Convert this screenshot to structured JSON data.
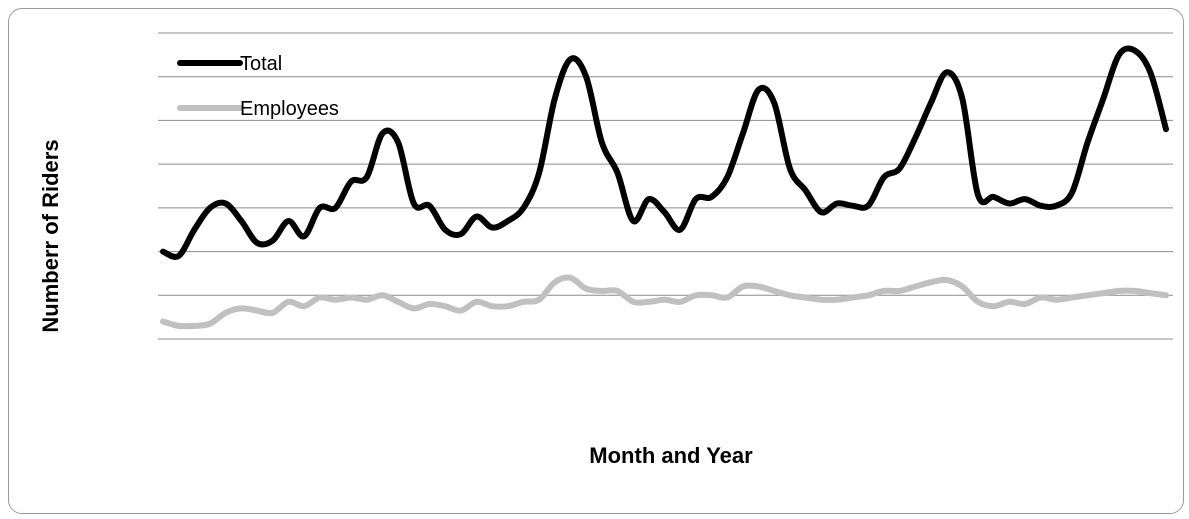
{
  "chart_data": {
    "type": "line",
    "title": "",
    "xlabel": "Month and Year",
    "ylabel": "Numberr of Riders",
    "ylim": [
      0,
      7
    ],
    "grid": true,
    "legend_position": "top-left",
    "x": [
      1,
      2,
      3,
      4,
      5,
      6,
      7,
      8,
      9,
      10,
      11,
      12,
      13,
      14,
      15,
      16,
      17,
      18,
      19,
      20,
      21,
      22,
      23,
      24,
      25,
      26,
      27,
      28,
      29,
      30,
      31,
      32,
      33,
      34,
      35,
      36,
      37,
      38,
      39,
      40,
      41,
      42,
      43,
      44,
      45,
      46,
      47,
      48,
      49,
      50,
      51,
      52,
      53,
      54,
      55,
      56,
      57,
      58,
      59,
      60,
      61,
      62,
      63,
      64,
      65
    ],
    "series": [
      {
        "name": "Total",
        "color": "#000000",
        "values": [
          2.0,
          1.9,
          2.5,
          3.0,
          3.1,
          2.7,
          2.2,
          2.25,
          2.7,
          2.35,
          3.0,
          3.0,
          3.6,
          3.7,
          4.7,
          4.5,
          3.1,
          3.05,
          2.5,
          2.4,
          2.8,
          2.55,
          2.7,
          3.0,
          3.8,
          5.5,
          6.4,
          6.0,
          4.5,
          3.8,
          2.7,
          3.2,
          2.9,
          2.5,
          3.2,
          3.25,
          3.7,
          4.7,
          5.7,
          5.4,
          3.9,
          3.4,
          2.9,
          3.1,
          3.05,
          3.05,
          3.7,
          3.9,
          4.6,
          5.4,
          6.1,
          5.5,
          3.3,
          3.25,
          3.1,
          3.2,
          3.05,
          3.05,
          3.35,
          4.5,
          5.5,
          6.5,
          6.6,
          6.1,
          4.8
        ]
      },
      {
        "name": "Employees",
        "color": "#c0c0c0",
        "values": [
          0.4,
          0.3,
          0.3,
          0.35,
          0.6,
          0.7,
          0.65,
          0.6,
          0.85,
          0.75,
          0.95,
          0.9,
          0.95,
          0.9,
          1.0,
          0.85,
          0.7,
          0.8,
          0.75,
          0.65,
          0.85,
          0.75,
          0.75,
          0.85,
          0.9,
          1.3,
          1.4,
          1.15,
          1.1,
          1.1,
          0.85,
          0.85,
          0.9,
          0.85,
          1.0,
          1.0,
          0.95,
          1.2,
          1.2,
          1.1,
          1.0,
          0.95,
          0.9,
          0.9,
          0.95,
          1.0,
          1.1,
          1.1,
          1.2,
          1.3,
          1.35,
          1.2,
          0.85,
          0.75,
          0.85,
          0.8,
          0.95,
          0.9,
          0.95,
          1.0,
          1.05,
          1.1,
          1.1,
          1.05,
          1.0
        ]
      }
    ]
  }
}
